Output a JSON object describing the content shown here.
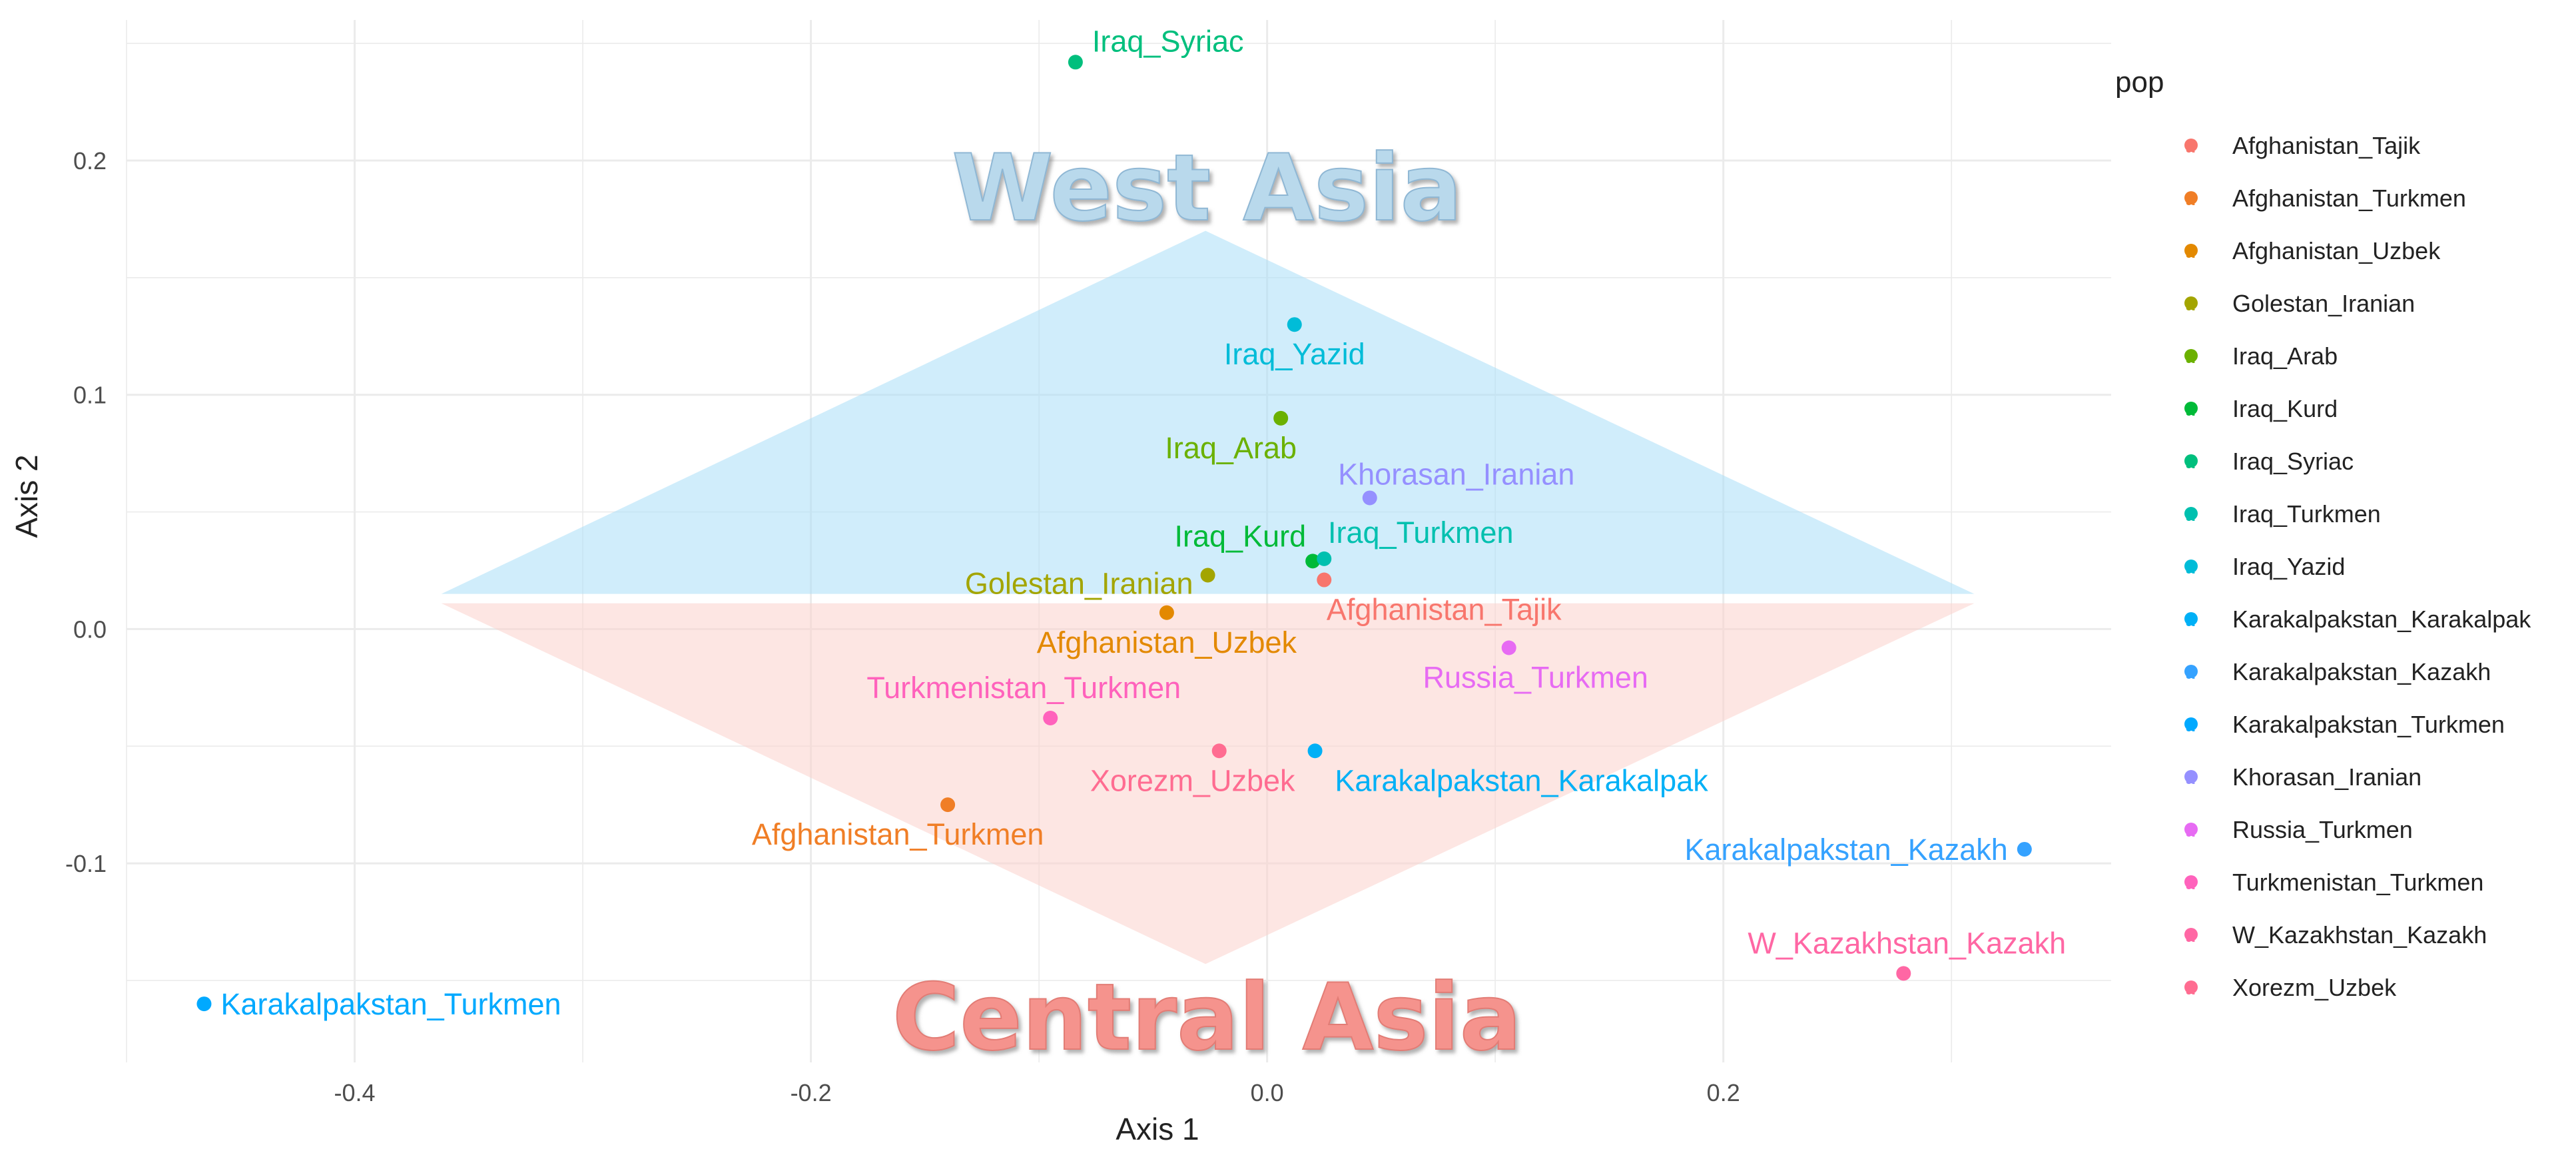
{
  "chart_data": {
    "type": "scatter",
    "title": "",
    "xlabel": "Axis 1",
    "ylabel": "Axis 2",
    "xlim": [
      -0.5,
      0.37
    ],
    "ylim": [
      -0.185,
      0.26
    ],
    "x_ticks": [
      -0.4,
      -0.2,
      0.0,
      0.2
    ],
    "x_tick_labels": [
      "-0.4",
      "-0.2",
      "0.0",
      "0.2"
    ],
    "y_ticks": [
      -0.1,
      0.0,
      0.1,
      0.2
    ],
    "y_tick_labels": [
      "-0.1",
      "0.0",
      "0.1",
      "0.2"
    ],
    "grid": true,
    "legend": {
      "title": "pop",
      "position": "right"
    },
    "regions": [
      {
        "label": "West Asia",
        "color": "#a9dff7",
        "text_color": "#b9d9ec",
        "polygon": [
          [
            -0.362,
            0.015
          ],
          [
            -0.027,
            0.17
          ],
          [
            0.31,
            0.015
          ]
        ]
      },
      {
        "label": "Central Asia",
        "color": "#fbd1cc",
        "text_color": "#f5938d",
        "polygon": [
          [
            -0.362,
            0.011
          ],
          [
            0.31,
            0.011
          ],
          [
            -0.027,
            -0.143
          ]
        ]
      }
    ],
    "series": [
      {
        "name": "Afghanistan_Tajik",
        "color": "#F8766D",
        "x": 0.025,
        "y": 0.021,
        "label": "Afghanistan_Tajik",
        "label_pos": "below"
      },
      {
        "name": "Afghanistan_Turkmen",
        "color": "#F07E26",
        "x": -0.14,
        "y": -0.075,
        "label": "Afghanistan_Turkmen",
        "label_pos": "below"
      },
      {
        "name": "Afghanistan_Uzbek",
        "color": "#E38900",
        "x": -0.044,
        "y": 0.007,
        "label": "Afghanistan_Uzbek",
        "label_pos": "below"
      },
      {
        "name": "Golestan_Iranian",
        "color": "#A3A500",
        "x": -0.026,
        "y": 0.023,
        "label": "Golestan_Iranian",
        "label_pos": "left"
      },
      {
        "name": "Iraq_Arab",
        "color": "#6BB100",
        "x": 0.006,
        "y": 0.09,
        "label": "Iraq_Arab",
        "label_pos": "below"
      },
      {
        "name": "Iraq_Kurd",
        "color": "#00BA38",
        "x": 0.02,
        "y": 0.029,
        "label": "Iraq_Kurd",
        "label_pos": "above-left"
      },
      {
        "name": "Iraq_Syriac",
        "color": "#00BF7D",
        "x": -0.084,
        "y": 0.242,
        "label": "Iraq_Syriac",
        "label_pos": "right"
      },
      {
        "name": "Iraq_Turkmen",
        "color": "#00C0AF",
        "x": 0.025,
        "y": 0.03,
        "label": "Iraq_Turkmen",
        "label_pos": "above"
      },
      {
        "name": "Iraq_Yazid",
        "color": "#00BCD8",
        "x": 0.012,
        "y": 0.13,
        "label": "Iraq_Yazid",
        "label_pos": "below"
      },
      {
        "name": "Karakalpakstan_Karakalpak",
        "color": "#00B0F6",
        "x": 0.021,
        "y": -0.052,
        "label": "Karakalpakstan_Karakalpak",
        "label_pos": "below"
      },
      {
        "name": "Karakalpakstan_Kazakh",
        "color": "#35A2FF",
        "x": 0.332,
        "y": -0.094,
        "label": "Karakalpakstan_Kazakh",
        "label_pos": "left"
      },
      {
        "name": "Karakalpakstan_Turkmen",
        "color": "#00A9FF",
        "x": -0.466,
        "y": -0.16,
        "label": "Karakalpakstan_Turkmen",
        "label_pos": "right"
      },
      {
        "name": "Khorasan_Iranian",
        "color": "#9590FF",
        "x": 0.045,
        "y": 0.056,
        "label": "Khorasan_Iranian",
        "label_pos": "above"
      },
      {
        "name": "Russia_Turkmen",
        "color": "#E76BF3",
        "x": 0.106,
        "y": -0.008,
        "label": "Russia_Turkmen",
        "label_pos": "below"
      },
      {
        "name": "Turkmenistan_Turkmen",
        "color": "#FF62BC",
        "x": -0.095,
        "y": -0.038,
        "label": "Turkmenistan_Turkmen",
        "label_pos": "above"
      },
      {
        "name": "W_Kazakhstan_Kazakh",
        "color": "#FF67A4",
        "x": 0.279,
        "y": -0.147,
        "label": "W_Kazakhstan_Kazakh",
        "label_pos": "above"
      },
      {
        "name": "Xorezm_Uzbek",
        "color": "#FF6C91",
        "x": -0.021,
        "y": -0.052,
        "label": "Xorezm_Uzbek",
        "label_pos": "below"
      }
    ]
  }
}
